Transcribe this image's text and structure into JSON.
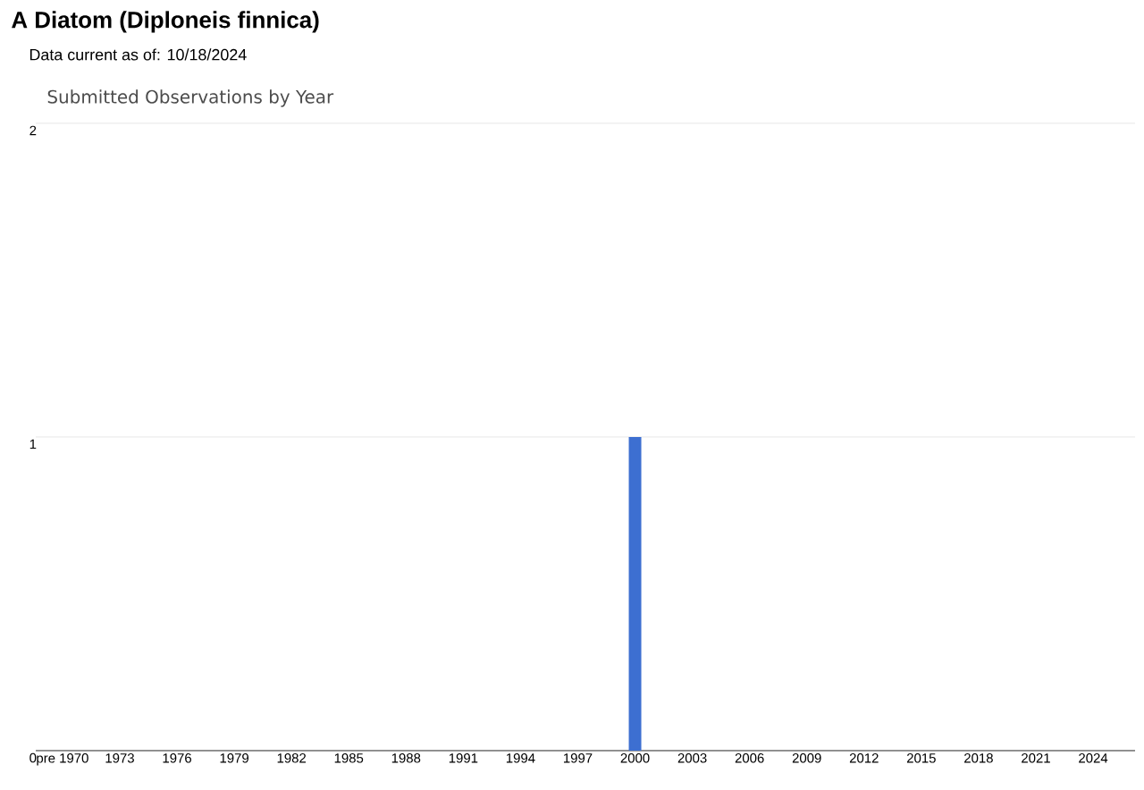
{
  "chart_data": {
    "type": "bar",
    "title": "A Diatom   (Diploneis finnica)",
    "subtitle": "Data current as of: 10/18/2024",
    "annotations": [
      "Submitted Observations by Year"
    ],
    "categories": [
      "pre 1970",
      null,
      null,
      "1973",
      null,
      null,
      "1976",
      null,
      null,
      "1979",
      null,
      null,
      "1982",
      null,
      null,
      "1985",
      null,
      null,
      "1988",
      null,
      null,
      "1991",
      null,
      null,
      "1994",
      null,
      null,
      "1997",
      null,
      null,
      "2000",
      null,
      null,
      "2003",
      null,
      null,
      "2006",
      null,
      null,
      "2009",
      null,
      null,
      "2012",
      null,
      null,
      "2015",
      null,
      null,
      "2018",
      null,
      null,
      "2021",
      null,
      null,
      "2024",
      null
    ],
    "values": [
      0,
      0,
      0,
      0,
      0,
      0,
      0,
      0,
      0,
      0,
      0,
      0,
      0,
      0,
      0,
      0,
      0,
      0,
      0,
      0,
      0,
      0,
      0,
      0,
      0,
      0,
      0,
      0,
      0,
      0,
      1,
      0,
      0,
      0,
      0,
      0,
      0,
      0,
      0,
      0,
      0,
      0,
      0,
      0,
      0,
      0,
      0,
      0,
      0,
      0,
      0,
      0,
      0,
      0,
      0,
      0
    ],
    "color": "#3d6fd1",
    "ylim": [
      0,
      2
    ],
    "yticks": [
      0,
      1,
      2
    ],
    "grid": "y"
  }
}
